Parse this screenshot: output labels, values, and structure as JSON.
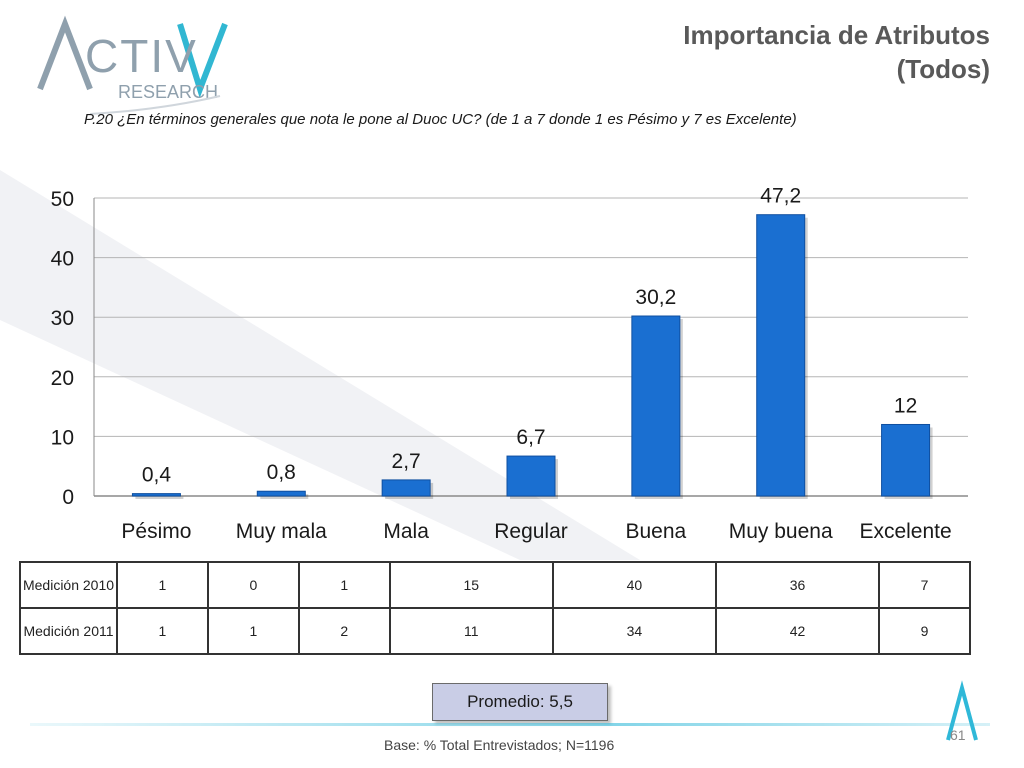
{
  "header": {
    "title_line1": "Importancia de Atributos",
    "title_line2": "(Todos)",
    "logo_text_top": "ACTIVA",
    "logo_text_bottom": "RESEARCH"
  },
  "question": "P.20  ¿En términos generales que nota le pone al Duoc UC? (de 1 a 7 donde 1 es Pésimo y 7 es Excelente)",
  "chart_data": {
    "type": "bar",
    "categories": [
      "Pésimo",
      "Muy mala",
      "Mala",
      "Regular",
      "Buena",
      "Muy buena",
      "Excelente"
    ],
    "values": [
      0.4,
      0.8,
      2.7,
      6.7,
      30.2,
      47.2,
      12
    ],
    "value_labels": [
      "0,4",
      "0,8",
      "2,7",
      "6,7",
      "30,2",
      "47,2",
      "12"
    ],
    "ylim": [
      0,
      50
    ],
    "yticks": [
      0,
      10,
      20,
      30,
      40,
      50
    ],
    "grid": true,
    "bar_color": "#1a6fd1"
  },
  "table": {
    "rows": [
      {
        "label": "Medición 2010",
        "values": [
          "1",
          "0",
          "1",
          "15",
          "40",
          "36",
          "7"
        ]
      },
      {
        "label": "Medición 2011",
        "values": [
          "1",
          "1",
          "2",
          "11",
          "34",
          "42",
          "9"
        ]
      }
    ]
  },
  "promedio": "Promedio: 5,5",
  "footer": {
    "base": "Base: % Total Entrevistados; N=1196",
    "page": "61"
  }
}
